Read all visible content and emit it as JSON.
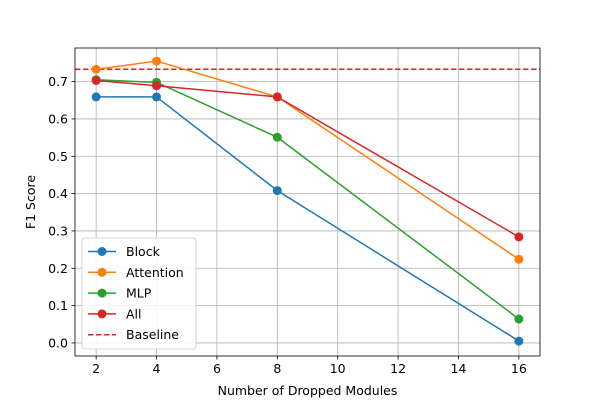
{
  "chart_data": {
    "type": "line",
    "xlabel": "Number of Dropped Modules",
    "ylabel": "F1 Score",
    "xlim": [
      1.3,
      16.7
    ],
    "ylim": [
      -0.035,
      0.79
    ],
    "xticks": [
      2,
      4,
      6,
      8,
      10,
      12,
      14,
      16
    ],
    "yticks": [
      0.0,
      0.1,
      0.2,
      0.3,
      0.4,
      0.5,
      0.6,
      0.7
    ],
    "grid": true,
    "legend_position": "lower-left",
    "x": [
      2,
      4,
      8,
      16
    ],
    "series": [
      {
        "name": "Block",
        "color": "#1f77b4",
        "values": [
          0.659,
          0.659,
          0.408,
          0.005
        ]
      },
      {
        "name": "Attention",
        "color": "#ff7f0e",
        "values": [
          0.733,
          0.755,
          0.659,
          0.224
        ]
      },
      {
        "name": "MLP",
        "color": "#2ca02c",
        "values": [
          0.705,
          0.698,
          0.551,
          0.064
        ]
      },
      {
        "name": "All",
        "color": "#d62728",
        "values": [
          0.703,
          0.689,
          0.659,
          0.284
        ]
      }
    ],
    "baseline": {
      "name": "Baseline",
      "color": "#d62728",
      "value": 0.733,
      "style": "dashed"
    }
  }
}
